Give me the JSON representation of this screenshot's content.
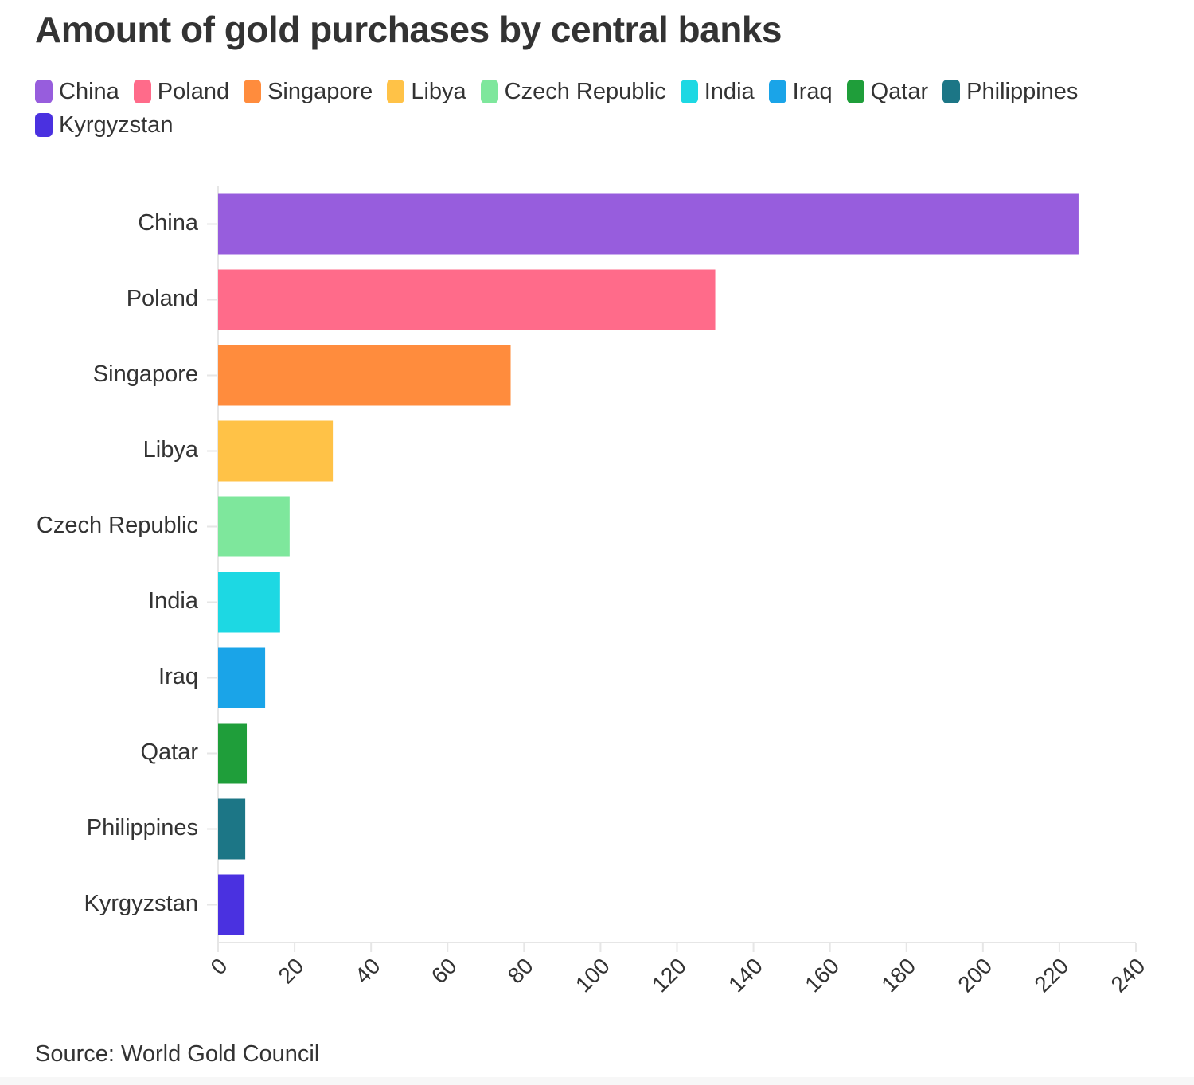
{
  "title": "Amount of gold purchases by central banks",
  "source": "Source: World Gold Council",
  "chart_data": {
    "type": "bar",
    "orientation": "horizontal",
    "title": "Amount of gold purchases by central banks",
    "xlabel": "",
    "ylabel": "",
    "categories": [
      "China",
      "Poland",
      "Singapore",
      "Libya",
      "Czech Republic",
      "India",
      "Iraq",
      "Qatar",
      "Philippines",
      "Kyrgyzstan"
    ],
    "values": [
      225,
      130,
      76.5,
      30,
      18.7,
      16.2,
      12.3,
      7.5,
      7.1,
      6.9
    ],
    "colors": [
      "#975ddd",
      "#ff6b8a",
      "#ff8c3d",
      "#ffc247",
      "#7ee79c",
      "#1dd8e3",
      "#1aa4e8",
      "#1f9e3a",
      "#1c7686",
      "#4a31e0"
    ],
    "xlim": [
      0,
      240
    ],
    "xticks": [
      "0",
      "20",
      "40",
      "60",
      "80",
      "100",
      "120",
      "140",
      "160",
      "180",
      "200",
      "220",
      "240"
    ],
    "grid": false,
    "legend_position": "top-left"
  }
}
